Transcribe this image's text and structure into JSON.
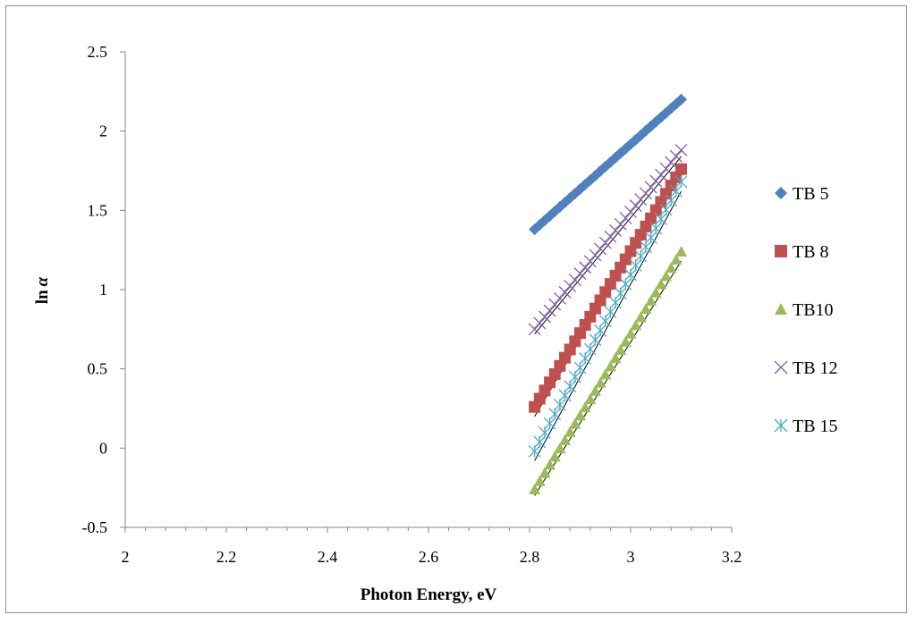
{
  "chart_data": {
    "type": "scatter",
    "title": "",
    "xlabel": "Photon Energy, eV",
    "ylabel_main": "ln",
    "ylabel_symbol": "α",
    "xlim": [
      2,
      3.2
    ],
    "ylim": [
      -0.5,
      2.5
    ],
    "x_ticks": [
      "2",
      "2.2",
      "2.4",
      "2.6",
      "2.8",
      "3",
      "3.2"
    ],
    "y_ticks": [
      "-0.5",
      "0",
      "0.5",
      "1",
      "1.5",
      "2",
      "2.5"
    ],
    "grid": false,
    "legend_position": "right",
    "series": [
      {
        "name": "TB 5",
        "color": "#4f81bd",
        "marker": "diamond",
        "x_start": 2.81,
        "x_end": 3.1,
        "n": 30,
        "y_start": 1.38,
        "y_end": 2.2,
        "fit": [
          1.38,
          2.2
        ]
      },
      {
        "name": "TB 8",
        "color": "#c0504d",
        "marker": "square",
        "x_start": 2.81,
        "x_end": 3.1,
        "n": 30,
        "y_start": 0.26,
        "y_end": 1.76,
        "fit": [
          0.2,
          1.76
        ]
      },
      {
        "name": "TB10",
        "color": "#9bbb59",
        "marker": "triangle",
        "x_start": 2.81,
        "x_end": 3.1,
        "n": 30,
        "y_start": -0.26,
        "y_end": 1.24,
        "fit": [
          -0.3,
          1.18
        ]
      },
      {
        "name": "TB 12",
        "color": "#8064a2",
        "marker": "x",
        "x_start": 2.81,
        "x_end": 3.1,
        "n": 30,
        "y_start": 0.75,
        "y_end": 1.88,
        "fit": [
          0.72,
          1.84
        ]
      },
      {
        "name": "TB 15",
        "color": "#4bacc6",
        "marker": "star",
        "x_start": 2.81,
        "x_end": 3.1,
        "n": 30,
        "y_start": -0.02,
        "y_end": 1.68,
        "fit": [
          -0.08,
          1.62
        ]
      }
    ]
  }
}
